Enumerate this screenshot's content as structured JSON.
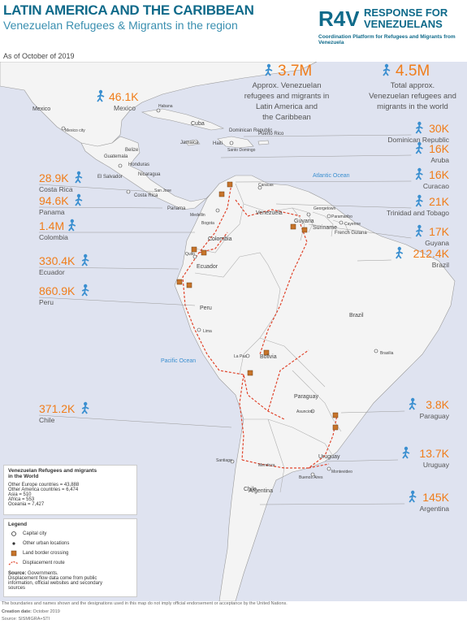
{
  "header": {
    "title": "LATIN AMERICA AND THE CARIBBEAN",
    "subtitle": "Venezuelan Refugees & Migrants in the region",
    "date": "As of October of 2019"
  },
  "logo": {
    "line1": "RESPONSE FOR",
    "line2": "VENEZUELANS",
    "sub": "Coordination Platform for Refugees and Migrants from Venezuela"
  },
  "totals": [
    {
      "value": "3.7M",
      "label1": "Approx. Venezuelan",
      "label2": "refugees and migrants in",
      "label3": "Latin America and",
      "label4": "the Caribbean"
    },
    {
      "value": "4.5M",
      "label1": "Total approx.",
      "label2": "Venezuelan refugees and",
      "label3": "migrants in the world",
      "label4": ""
    }
  ],
  "countries_left": [
    {
      "value": "46.1K",
      "name": "Mexico"
    },
    {
      "value": "28.9K",
      "name": "Costa Rica"
    },
    {
      "value": "94.6K",
      "name": "Panama"
    },
    {
      "value": "1.4M",
      "name": "Colombia"
    },
    {
      "value": "330.4K",
      "name": "Ecuador"
    },
    {
      "value": "860.9K",
      "name": "Peru"
    },
    {
      "value": "371.2K",
      "name": "Chile"
    }
  ],
  "countries_right": [
    {
      "value": "30K",
      "name": "Dominican Republic"
    },
    {
      "value": "16K",
      "name": "Aruba"
    },
    {
      "value": "16K",
      "name": "Curacao"
    },
    {
      "value": "21K",
      "name": "Trinidad and Tobago"
    },
    {
      "value": "17K",
      "name": "Guyana"
    },
    {
      "value": "212.4K",
      "name": "Brazil"
    },
    {
      "value": "3.8K",
      "name": "Paraguay"
    },
    {
      "value": "13.7K",
      "name": "Uruguay"
    },
    {
      "value": "145K",
      "name": "Argentina"
    }
  ],
  "map_labels": {
    "mexico": "Mexico",
    "mexico_city": "Mexico city",
    "belize": "Belize",
    "guatemala": "Guatemala",
    "honduras": "Honduras",
    "el_salvador": "El Salvador",
    "nicaragua": "Nicaragua",
    "costa_rica": "Costa Rica",
    "san_jose": "San Jose",
    "panama": "Panama",
    "habana": "Habana",
    "cuba": "Cuba",
    "jamaica": "Jamaica",
    "haiti": "Haiti",
    "dominican_republic": "Dominican Republic",
    "santo_domingo": "Santo Domingo",
    "puerto_rico": "Puerto Rico",
    "atlantic": "Atlantic Ocean",
    "pacific": "Pacific Ocean",
    "caracas": "Caracas",
    "venezuela": "Venezuela",
    "bogota": "Bogota",
    "medellin": "Medellin",
    "colombia": "Colombia",
    "quito": "Quito",
    "ecuador": "Ecuador",
    "peru": "Peru",
    "lima": "Lima",
    "georgetown": "Georgetown",
    "paramaribo": "Paramaribo",
    "cayenne": "Cayenne",
    "guyana": "Guyana",
    "suriname": "Suriname",
    "french_guiana": "French Guiana",
    "brazil": "Brazil",
    "brasilia": "Brasilia",
    "bolivia": "Bolivia",
    "la_paz": "La Paz",
    "paraguay": "Paraguay",
    "asuncion": "Asuncion",
    "chile": "Chile",
    "santiago": "Santiago",
    "mendoza": "Mendoza",
    "argentina": "Argentina",
    "buenos_aires": "Buenos Aires",
    "uruguay": "Uruguay",
    "montevideo": "Montevideo"
  },
  "world_box": {
    "title1": "Venezuelan Refugees and migrants",
    "title2": "in the World",
    "lines": [
      "Other Europe countries = 43,888",
      "Other America countries = 6,474",
      "Asia = 510",
      "Africa = 553",
      "Oceania = 7,427"
    ]
  },
  "legend": {
    "title": "Legend",
    "items": [
      "Capital city",
      "Other urban locations",
      "Land border crossing",
      "Displacement route"
    ],
    "source_title": "Source:",
    "source_text": "Governments.",
    "source_lines": [
      "Displacement flow data come from public",
      "information, official websites and secondary",
      "sources"
    ]
  },
  "footer": {
    "disclaimer": "The boundaries and names shown and the designations used in this map do not imply official endorsement or acceptance by the United Nations.",
    "creation_label": "Creation date:",
    "creation_value": "October 2019",
    "source": "Source: SISMIGRA+STI"
  },
  "colors": {
    "ocean": "#dfe3f0",
    "land": "#f4f4f4",
    "accent": "#f07d1a",
    "brand": "#0f6a8a",
    "icon": "#3a8fd0",
    "route": "#e0452c"
  }
}
